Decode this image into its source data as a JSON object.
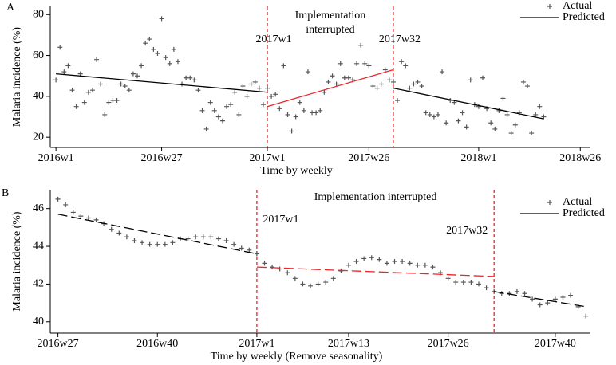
{
  "chart_data": [
    {
      "type": "scatter",
      "label": "A",
      "xlabel": "Time by weekly",
      "ylabel": "Malaria incidence (%)",
      "xlim": [
        -1.4,
        131.5
      ],
      "ylim": [
        15,
        84
      ],
      "xticks": [
        {
          "value": 0,
          "label": "2016w1"
        },
        {
          "value": 26,
          "label": "2016w27"
        },
        {
          "value": 52,
          "label": "2017w1"
        },
        {
          "value": 77,
          "label": "2017w26"
        },
        {
          "value": 104,
          "label": "2018w1"
        },
        {
          "value": 129,
          "label": "2018w26"
        }
      ],
      "yticks": [
        20,
        40,
        60,
        80
      ],
      "annotation": "Implementation interrupted",
      "interruptions": [
        {
          "x": 52,
          "label": "2017w1"
        },
        {
          "x": 83,
          "label": "2017w32"
        }
      ],
      "interruption_color": "#e8262b",
      "actual": {
        "name": "Actual",
        "color": "#555555",
        "values": [
          48,
          64,
          52,
          55,
          43,
          35,
          51,
          37,
          42,
          43,
          58,
          46,
          31,
          37,
          38,
          38,
          46,
          45,
          43,
          51,
          50,
          55,
          66,
          68,
          63,
          61,
          78,
          59,
          56,
          63,
          57,
          46,
          49,
          49,
          48,
          43,
          33,
          24,
          37,
          33,
          30,
          28,
          35,
          36,
          42,
          31,
          45,
          40,
          46,
          47,
          44,
          36,
          44,
          40,
          41,
          34,
          55,
          31,
          23,
          30,
          37,
          33,
          52,
          32,
          32,
          33,
          42,
          47,
          50,
          46,
          56,
          49,
          49,
          48,
          56,
          65,
          56,
          55,
          45,
          44,
          46,
          53,
          48,
          47,
          38,
          57,
          55,
          44,
          46,
          47,
          45,
          32,
          31,
          30,
          31,
          52,
          27,
          38,
          37,
          28,
          32,
          25,
          48,
          36,
          35,
          49,
          34,
          27,
          24,
          33,
          39,
          31,
          22,
          26,
          32,
          47,
          45,
          22,
          31,
          35,
          30
        ]
      },
      "predicted": {
        "name": "Predicted",
        "dashed": false,
        "segments": [
          {
            "x": [
              0,
              52
            ],
            "values": [
              51,
              42
            ],
            "color": "#000000"
          },
          {
            "x": [
              52,
              83
            ],
            "values": [
              35,
              53
            ],
            "color": "#e8262b"
          },
          {
            "x": [
              83,
              120
            ],
            "values": [
              44,
              29
            ],
            "color": "#000000"
          }
        ]
      }
    },
    {
      "type": "scatter",
      "label": "B",
      "xlabel": "Time by weekly (Remove seasonality)",
      "ylabel": "Malaria incidence (%)",
      "xlim": [
        -1,
        69.6
      ],
      "ylim": [
        39.4,
        47
      ],
      "xticks": [
        {
          "value": 0,
          "label": "2016w27"
        },
        {
          "value": 13,
          "label": "2016w40"
        },
        {
          "value": 26,
          "label": "2017w1"
        },
        {
          "value": 38,
          "label": "2017w13"
        },
        {
          "value": 51,
          "label": "2017w26"
        },
        {
          "value": 65,
          "label": "2017w40"
        }
      ],
      "yticks": [
        40,
        42,
        44,
        46
      ],
      "annotation": "Implementation interrupted",
      "interruptions": [
        {
          "x": 26,
          "label": "2017w1"
        },
        {
          "x": 57,
          "label": "2017w32"
        }
      ],
      "interruption_color": "#e8262b",
      "actual": {
        "name": "Actual",
        "color": "#555555",
        "values": [
          46.5,
          46.2,
          45.8,
          45.6,
          45.5,
          45.4,
          45.2,
          44.9,
          44.7,
          44.5,
          44.3,
          44.2,
          44.1,
          44.1,
          44.1,
          44.2,
          44.4,
          44.4,
          44.5,
          44.5,
          44.5,
          44.4,
          44.3,
          44.1,
          43.9,
          43.8,
          43.6,
          43.1,
          42.9,
          42.8,
          42.6,
          42.3,
          42.0,
          41.9,
          42.0,
          42.1,
          42.3,
          42.7,
          43.0,
          43.2,
          43.35,
          43.4,
          43.3,
          43.1,
          43.2,
          43.2,
          43.1,
          43.0,
          43.0,
          42.9,
          42.6,
          42.3,
          42.1,
          42.1,
          42.1,
          42.0,
          41.8,
          41.6,
          41.5,
          41.5,
          41.6,
          41.5,
          41.2,
          40.9,
          41.0,
          41.2,
          41.3,
          41.4,
          40.8,
          40.3
        ]
      },
      "predicted": {
        "name": "Predicted",
        "dashed": true,
        "segments": [
          {
            "x": [
              0,
              26
            ],
            "values": [
              45.7,
              43.6
            ],
            "color": "#000000"
          },
          {
            "x": [
              26,
              57
            ],
            "values": [
              42.9,
              42.4
            ],
            "color": "#e8262b"
          },
          {
            "x": [
              57,
              69
            ],
            "values": [
              41.6,
              40.8
            ],
            "color": "#000000"
          }
        ]
      }
    }
  ]
}
